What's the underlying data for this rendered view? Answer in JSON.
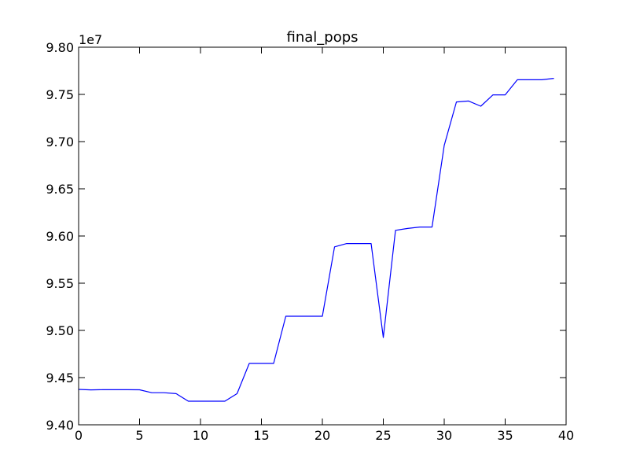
{
  "chart_data": {
    "type": "line",
    "title": "final_pops",
    "y_offset_label": "1e7",
    "xlim": [
      0,
      40
    ],
    "ylim": [
      9.4,
      9.8
    ],
    "x_ticks": [
      0,
      5,
      10,
      15,
      20,
      25,
      30,
      35,
      40
    ],
    "x_tick_labels": [
      "0",
      "5",
      "10",
      "15",
      "20",
      "25",
      "30",
      "35",
      "40"
    ],
    "y_ticks": [
      9.4,
      9.45,
      9.5,
      9.55,
      9.6,
      9.65,
      9.7,
      9.75,
      9.8
    ],
    "y_tick_labels": [
      "9.40",
      "9.45",
      "9.50",
      "9.55",
      "9.60",
      "9.65",
      "9.70",
      "9.75",
      "9.80"
    ],
    "grid": false,
    "legend": "none",
    "series": [
      {
        "color": "#0000ff",
        "x": [
          0,
          1,
          2,
          3,
          4,
          5,
          6,
          7,
          8,
          9,
          10,
          11,
          12,
          13,
          14,
          15,
          16,
          17,
          18,
          19,
          20,
          21,
          22,
          23,
          24,
          25,
          26,
          27,
          28,
          29,
          30,
          31,
          32,
          33,
          34,
          35,
          36,
          37,
          38,
          39
        ],
        "values": [
          9.4375,
          9.437,
          9.4372,
          9.4372,
          9.4372,
          9.4371,
          9.434,
          9.434,
          9.433,
          9.425,
          9.425,
          9.425,
          9.425,
          9.433,
          9.465,
          9.465,
          9.465,
          9.515,
          9.515,
          9.515,
          9.515,
          9.5885,
          9.592,
          9.592,
          9.592,
          9.4925,
          9.606,
          9.608,
          9.6095,
          9.6095,
          9.696,
          9.742,
          9.743,
          9.7375,
          9.7495,
          9.7495,
          9.7655,
          9.7655,
          9.7655,
          9.767
        ]
      }
    ]
  }
}
